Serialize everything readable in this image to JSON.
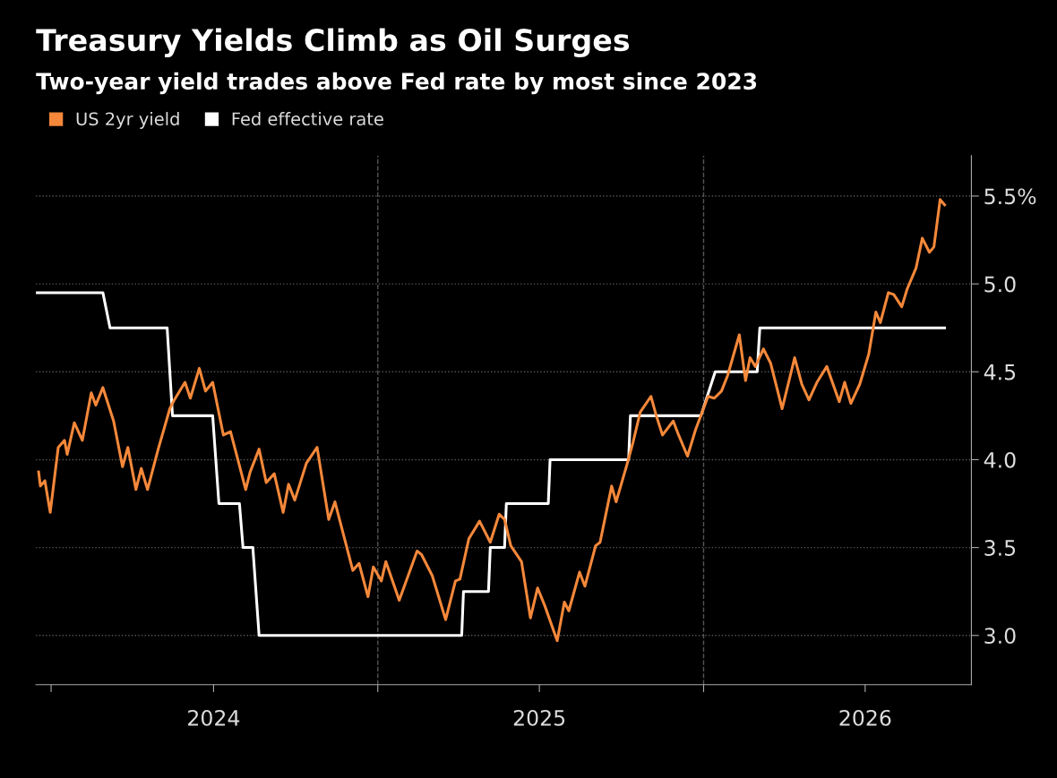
{
  "chart_data": {
    "type": "line",
    "title": "Treasury Yields Climb as Oil Surges",
    "subtitle": "Two-year yield trades above Fed rate by most since 2023",
    "series": [
      {
        "name": "US 2yr yield",
        "color": "#f5883a",
        "x": [
          "2023-12-18",
          "2023-12-20",
          "2023-12-25",
          "2023-12-31",
          "2024-01-09",
          "2024-01-16",
          "2024-01-19",
          "2024-01-27",
          "2024-02-05",
          "2024-02-15",
          "2024-02-20",
          "2024-02-28",
          "2024-03-11",
          "2024-03-21",
          "2024-03-27",
          "2024-04-05",
          "2024-04-11",
          "2024-04-18",
          "2024-04-30",
          "2024-05-13",
          "2024-05-18",
          "2024-05-30",
          "2024-06-05",
          "2024-06-15",
          "2024-06-22",
          "2024-06-30",
          "2024-07-12",
          "2024-07-20",
          "2024-08-06",
          "2024-08-11",
          "2024-08-21",
          "2024-08-29",
          "2024-09-07",
          "2024-09-17",
          "2024-09-23",
          "2024-09-30",
          "2024-10-13",
          "2024-10-25",
          "2024-11-07",
          "2024-11-14",
          "2024-12-04",
          "2024-12-11",
          "2024-12-21",
          "2024-12-27",
          "2025-01-05",
          "2025-01-10",
          "2025-01-25",
          "2025-02-14",
          "2025-02-19",
          "2025-03-03",
          "2025-03-18",
          "2025-03-29",
          "2025-04-03",
          "2025-04-13",
          "2025-04-25",
          "2025-05-07",
          "2025-05-17",
          "2025-05-23",
          "2025-05-30",
          "2025-06-11",
          "2025-06-21",
          "2025-06-29",
          "2025-07-07",
          "2025-07-21",
          "2025-07-29",
          "2025-08-03",
          "2025-08-15",
          "2025-08-21",
          "2025-09-02",
          "2025-09-07",
          "2025-09-20",
          "2025-09-25",
          "2025-10-07",
          "2025-10-14",
          "2025-10-22",
          "2025-11-03",
          "2025-11-09",
          "2025-11-16",
          "2025-11-28",
          "2025-12-04",
          "2025-12-14",
          "2025-12-23",
          "2026-01-06",
          "2026-01-13",
          "2026-01-21",
          "2026-01-28",
          "2026-02-10",
          "2026-02-17",
          "2026-02-22",
          "2026-02-28",
          "2026-03-09",
          "2026-03-17",
          "2026-03-30",
          "2026-04-13",
          "2026-04-21",
          "2026-04-29",
          "2026-05-08",
          "2026-05-19",
          "2026-06-02",
          "2026-06-08",
          "2026-06-15",
          "2026-06-25",
          "2026-07-05",
          "2026-07-13",
          "2026-07-18",
          "2026-07-27",
          "2026-08-02",
          "2026-08-11",
          "2026-08-17",
          "2026-08-27",
          "2026-09-03",
          "2026-09-11",
          "2026-09-16",
          "2026-09-23",
          "2026-09-28"
        ],
        "values": [
          3.93,
          3.85,
          3.88,
          3.7,
          4.07,
          4.11,
          4.03,
          4.21,
          4.11,
          4.38,
          4.31,
          4.41,
          4.22,
          3.96,
          4.07,
          3.83,
          3.95,
          3.83,
          4.06,
          4.29,
          4.34,
          4.44,
          4.35,
          4.52,
          4.39,
          4.44,
          4.14,
          4.16,
          3.83,
          3.93,
          4.06,
          3.87,
          3.92,
          3.7,
          3.86,
          3.77,
          3.98,
          4.07,
          3.66,
          3.76,
          3.37,
          3.41,
          3.22,
          3.39,
          3.31,
          3.42,
          3.2,
          3.48,
          3.46,
          3.34,
          3.09,
          3.31,
          3.32,
          3.55,
          3.65,
          3.53,
          3.69,
          3.66,
          3.51,
          3.42,
          3.1,
          3.27,
          3.17,
          2.97,
          3.19,
          3.14,
          3.36,
          3.28,
          3.51,
          3.53,
          3.85,
          3.76,
          3.97,
          4.1,
          4.27,
          4.36,
          4.25,
          4.14,
          4.22,
          4.14,
          4.02,
          4.17,
          4.36,
          4.35,
          4.39,
          4.48,
          4.71,
          4.45,
          4.58,
          4.53,
          4.63,
          4.55,
          4.29,
          4.58,
          4.43,
          4.34,
          4.44,
          4.53,
          4.33,
          4.44,
          4.32,
          4.43,
          4.6,
          4.84,
          4.78,
          4.95,
          4.94,
          4.87,
          4.97,
          5.09,
          5.26,
          5.18,
          5.21,
          5.48,
          5.45
        ]
      },
      {
        "name": "Fed effective rate",
        "color": "#ffffff",
        "x": [
          "2023-12-16",
          "2024-02-28",
          "2024-03-07",
          "2024-05-10",
          "2024-05-16",
          "2024-06-30",
          "2024-07-07",
          "2024-07-30",
          "2024-08-03",
          "2024-08-14",
          "2024-08-21",
          "2025-04-05",
          "2025-04-07",
          "2025-05-05",
          "2025-05-07",
          "2025-05-23",
          "2025-05-25",
          "2025-07-11",
          "2025-07-13",
          "2025-10-09",
          "2025-10-11",
          "2025-12-29",
          "2026-01-14",
          "2026-03-02",
          "2026-03-05",
          "2026-09-28"
        ],
        "values": [
          4.95,
          4.95,
          4.75,
          4.75,
          4.25,
          4.25,
          3.75,
          3.75,
          3.5,
          3.5,
          3.0,
          3.0,
          3.25,
          3.25,
          3.5,
          3.5,
          3.75,
          3.75,
          4.0,
          4.0,
          4.25,
          4.25,
          4.5,
          4.5,
          4.75,
          4.75
        ]
      }
    ],
    "xlim": [
      "2023-12-15",
      "2026-10-28"
    ],
    "xticks": [
      {
        "value": "2024-01-01",
        "label": null
      },
      {
        "value": "2024-07-01",
        "label": "2024"
      },
      {
        "value": "2025-01-01",
        "label": null
      },
      {
        "value": "2025-07-01",
        "label": "2025"
      },
      {
        "value": "2026-01-01",
        "label": null
      },
      {
        "value": "2026-07-01",
        "label": "2026"
      }
    ],
    "ylim": [
      2.72,
      5.73
    ],
    "yticks": [
      {
        "value": 3,
        "label": "3.0"
      },
      3.5,
      {
        "value": 4,
        "label": "4.0"
      },
      4.5,
      {
        "value": 5,
        "label": "5.0"
      },
      {
        "value": 5.5,
        "label": "5.5%"
      }
    ],
    "grid": "y",
    "ref_lines": [
      {
        "axis": "x",
        "value": "2025-01-01",
        "label": null,
        "color": "#555555",
        "line_style": "dashed"
      },
      {
        "axis": "x",
        "value": "2026-01-01",
        "label": null,
        "color": "#555555",
        "line_style": "dashed"
      }
    ],
    "legend": "top left",
    "marker": "none",
    "line_style": "solid"
  }
}
